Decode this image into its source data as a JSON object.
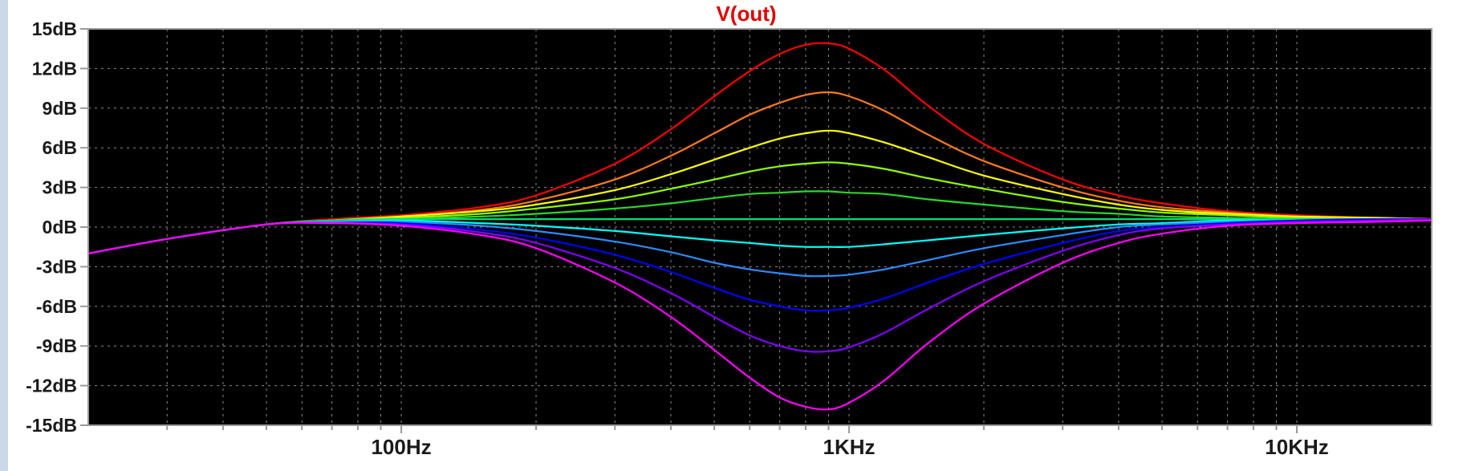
{
  "chart_data": {
    "type": "line",
    "title": "V(out)",
    "title_color": "#e00000",
    "background": "#000000",
    "grid": true,
    "grid_color": "#8a8a8a",
    "x_scale": "log",
    "xlim": [
      20,
      20000
    ],
    "ylim": [
      -15,
      15
    ],
    "x_ticks": [
      {
        "value": 100,
        "label": "100Hz"
      },
      {
        "value": 1000,
        "label": "1KHz"
      },
      {
        "value": 10000,
        "label": "10KHz"
      }
    ],
    "y_ticks": [
      {
        "value": 15,
        "label": "15dB"
      },
      {
        "value": 12,
        "label": "12dB"
      },
      {
        "value": 9,
        "label": "9dB"
      },
      {
        "value": 6,
        "label": "6dB"
      },
      {
        "value": 3,
        "label": "3dB"
      },
      {
        "value": 0,
        "label": "0dB"
      },
      {
        "value": -3,
        "label": "-3dB"
      },
      {
        "value": -6,
        "label": "-6dB"
      },
      {
        "value": -9,
        "label": "-9dB"
      },
      {
        "value": -12,
        "label": "-12dB"
      },
      {
        "value": -15,
        "label": "-15dB"
      }
    ],
    "x": [
      20,
      30,
      50,
      70,
      100,
      150,
      200,
      300,
      400,
      500,
      600,
      700,
      800,
      900,
      1000,
      1200,
      1500,
      2000,
      3000,
      4000,
      5000,
      7000,
      10000,
      15000,
      20000
    ],
    "series": [
      {
        "color": "#ff0000",
        "values": [
          -2.0,
          -0.9,
          0.2,
          0.6,
          0.9,
          1.5,
          2.4,
          4.8,
          7.4,
          9.9,
          11.8,
          13.1,
          13.8,
          13.9,
          13.5,
          11.9,
          9.2,
          6.3,
          3.6,
          2.4,
          1.8,
          1.2,
          0.9,
          0.7,
          0.6
        ]
      },
      {
        "color": "#ff7a1a",
        "values": [
          -2.0,
          -0.9,
          0.2,
          0.5,
          0.8,
          1.3,
          2.0,
          3.6,
          5.4,
          7.1,
          8.5,
          9.4,
          10.0,
          10.2,
          9.9,
          8.8,
          7.0,
          5.0,
          3.0,
          2.0,
          1.5,
          1.1,
          0.8,
          0.7,
          0.6
        ]
      },
      {
        "color": "#ffff00",
        "values": [
          -2.0,
          -0.9,
          0.2,
          0.5,
          0.8,
          1.2,
          1.7,
          2.8,
          4.0,
          5.1,
          6.0,
          6.7,
          7.1,
          7.3,
          7.1,
          6.4,
          5.3,
          3.9,
          2.5,
          1.7,
          1.3,
          1.0,
          0.8,
          0.7,
          0.6
        ]
      },
      {
        "color": "#90ff00",
        "values": [
          -2.0,
          -0.9,
          0.2,
          0.5,
          0.7,
          1.0,
          1.4,
          2.1,
          2.9,
          3.6,
          4.2,
          4.6,
          4.8,
          4.9,
          4.8,
          4.4,
          3.7,
          2.9,
          1.9,
          1.4,
          1.1,
          0.9,
          0.7,
          0.6,
          0.6
        ]
      },
      {
        "color": "#2cd62c",
        "values": [
          -2.0,
          -0.9,
          0.2,
          0.5,
          0.6,
          0.8,
          1.0,
          1.4,
          1.8,
          2.2,
          2.5,
          2.6,
          2.7,
          2.7,
          2.6,
          2.5,
          2.1,
          1.7,
          1.2,
          1.0,
          0.8,
          0.7,
          0.6,
          0.6,
          0.6
        ]
      },
      {
        "color": "#00e070",
        "values": [
          -2.0,
          -0.9,
          0.2,
          0.5,
          0.6,
          0.6,
          0.6,
          0.6,
          0.6,
          0.6,
          0.6,
          0.6,
          0.6,
          0.6,
          0.6,
          0.6,
          0.6,
          0.6,
          0.6,
          0.6,
          0.6,
          0.6,
          0.6,
          0.6,
          0.6
        ]
      },
      {
        "color": "#00ffff",
        "values": [
          -2.0,
          -0.9,
          0.2,
          0.4,
          0.5,
          0.3,
          0.1,
          -0.3,
          -0.7,
          -1.0,
          -1.2,
          -1.4,
          -1.5,
          -1.5,
          -1.5,
          -1.3,
          -1.0,
          -0.6,
          -0.1,
          0.2,
          0.3,
          0.5,
          0.5,
          0.6,
          0.6
        ]
      },
      {
        "color": "#2a8cff",
        "values": [
          -2.0,
          -0.9,
          0.2,
          0.4,
          0.4,
          0.1,
          -0.3,
          -1.1,
          -1.9,
          -2.7,
          -3.2,
          -3.5,
          -3.7,
          -3.7,
          -3.6,
          -3.2,
          -2.5,
          -1.6,
          -0.6,
          0.0,
          0.2,
          0.4,
          0.5,
          0.6,
          0.6
        ]
      },
      {
        "color": "#0000ff",
        "values": [
          -2.0,
          -0.9,
          0.2,
          0.3,
          0.3,
          -0.2,
          -0.8,
          -2.1,
          -3.4,
          -4.6,
          -5.5,
          -6.0,
          -6.3,
          -6.3,
          -6.1,
          -5.4,
          -4.2,
          -2.8,
          -1.2,
          -0.3,
          0.0,
          0.3,
          0.5,
          0.6,
          0.6
        ]
      },
      {
        "color": "#8000ff",
        "values": [
          -2.0,
          -0.9,
          0.2,
          0.3,
          0.2,
          -0.4,
          -1.2,
          -3.1,
          -5.0,
          -6.8,
          -8.2,
          -9.0,
          -9.4,
          -9.4,
          -9.1,
          -8.0,
          -6.2,
          -4.1,
          -1.8,
          -0.6,
          -0.1,
          0.2,
          0.4,
          0.5,
          0.6
        ]
      },
      {
        "color": "#ff00ff",
        "values": [
          -2.0,
          -0.9,
          0.2,
          0.3,
          0.1,
          -0.6,
          -1.6,
          -4.2,
          -6.8,
          -9.3,
          -11.4,
          -12.9,
          -13.6,
          -13.8,
          -13.3,
          -11.6,
          -8.8,
          -5.8,
          -2.7,
          -1.2,
          -0.5,
          0.1,
          0.3,
          0.4,
          0.5
        ]
      }
    ]
  }
}
